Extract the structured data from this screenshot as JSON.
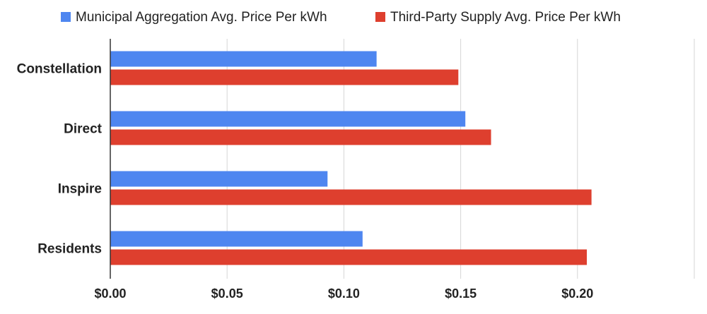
{
  "chart_data": {
    "type": "bar",
    "orientation": "horizontal",
    "categories": [
      "Constellation",
      "Direct",
      "Inspire",
      "Residents"
    ],
    "series": [
      {
        "name": "Municipal Aggregation Avg. Price Per kWh",
        "color": "#4e86f0",
        "values": [
          0.114,
          0.152,
          0.093,
          0.108
        ]
      },
      {
        "name": "Third-Party Supply Avg. Price Per kWh",
        "color": "#de3f2e",
        "values": [
          0.149,
          0.163,
          0.206,
          0.204
        ]
      }
    ],
    "x_ticks": [
      0,
      0.05,
      0.1,
      0.15,
      0.2
    ],
    "x_tick_labels": [
      "$0.00",
      "$0.05",
      "$0.10",
      "$0.15",
      "$0.20"
    ],
    "xlim": [
      0,
      0.25
    ],
    "grid": true,
    "legend_position": "top"
  }
}
